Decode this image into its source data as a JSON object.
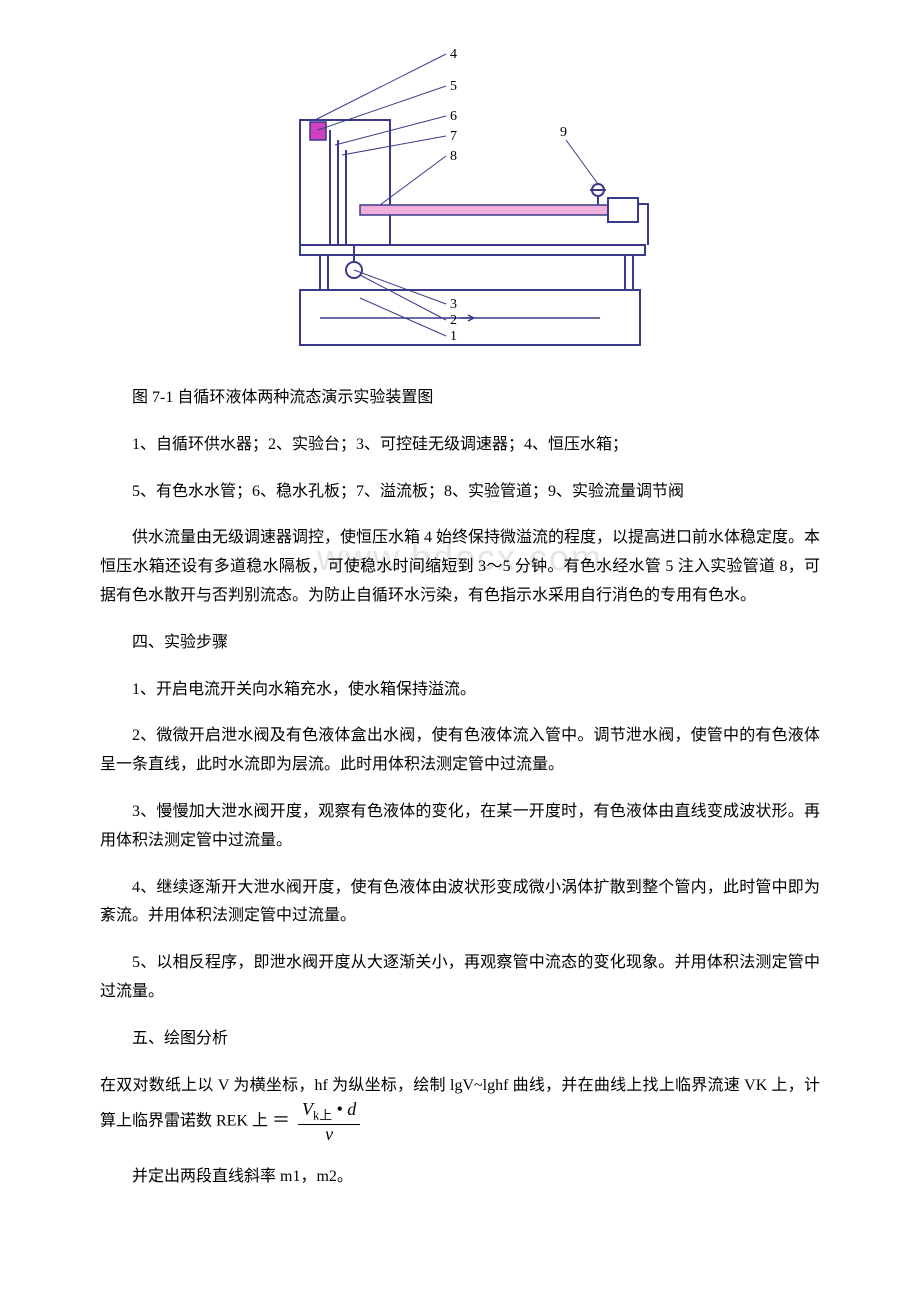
{
  "figure": {
    "caption": "图 7-1 自循环液体两种流态演示实验装置图",
    "labels": {
      "l1": "1",
      "l2": "2",
      "l3": "3",
      "l4": "4",
      "l5": "5",
      "l6": "6",
      "l7": "7",
      "l8": "8",
      "l9": "9"
    },
    "colors": {
      "stroke": "#3a3a8a",
      "tube_fill": "#f0b0db",
      "cap_fill": "#d040c0",
      "bg": "#ffffff"
    }
  },
  "legend": {
    "line1": "1、自循环供水器；2、实验台；3、可控硅无级调速器；4、恒压水箱；",
    "line2": "5、有色水水管；6、稳水孔板；7、溢流板；8、实验管道；9、实验流量调节阀"
  },
  "paragraphs": {
    "p1": "供水流量由无级调速器调控，使恒压水箱 4 始终保持微溢流的程度，以提高进口前水体稳定度。本恒压水箱还设有多道稳水隔板，可使稳水时间缩短到 3～5 分钟。有色水经水管 5 注入实验管道 8，可据有色水散开与否判别流态。为防止自循环水污染，有色指示水采用自行消色的专用有色水。",
    "section4_title": "四、实验步骤",
    "step1": "1、开启电流开关向水箱充水，使水箱保持溢流。",
    "step2": "2、微微开启泄水阀及有色液体盒出水阀，使有色液体流入管中。调节泄水阀，使管中的有色液体呈一条直线，此时水流即为层流。此时用体积法测定管中过流量。",
    "step3": "3、慢慢加大泄水阀开度，观察有色液体的变化，在某一开度时，有色液体由直线变成波状形。再用体积法测定管中过流量。",
    "step4": "4、继续逐渐开大泄水阀开度，使有色液体由波状形变成微小涡体扩散到整个管内，此时管中即为紊流。并用体积法测定管中过流量。",
    "step5": "5、以相反程序，即泄水阀开度从大逐渐关小，再观察管中流态的变化现象。并用体积法测定管中过流量。",
    "section5_title": "五、绘图分析",
    "p_analysis_part1": "在双对数纸上以 V 为横坐标，hf 为纵坐标，绘制 lgV~lghf 曲线，并在曲线上找上临界流速 VK 上，计算上临界雷诺数 REK 上",
    "p_last": "并定出两段直线斜率 m1，m2。"
  },
  "formula": {
    "eq_sign": "＝",
    "numerator": "V<span class=\"sub\">k上</span> • d",
    "denominator": "ν"
  },
  "watermark": "www.bdocx.com"
}
